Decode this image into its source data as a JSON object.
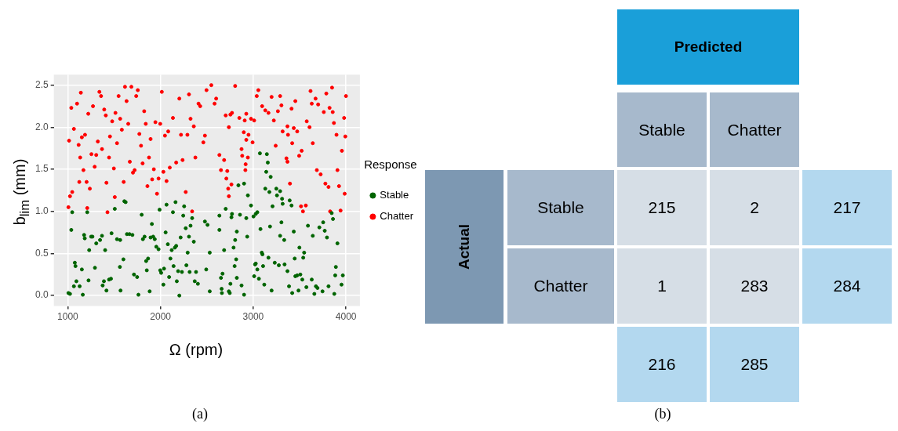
{
  "chart_data": [
    {
      "type": "scatter",
      "xlabel": "Ω (rpm)",
      "ylabel": "b$_{lim}$ (mm)",
      "legend_title": "Response",
      "legend": "right",
      "grid": true,
      "marker": "circle",
      "annotations": [
        "(a)"
      ],
      "xlim": [
        850,
        4150
      ],
      "ylim": [
        -0.125,
        2.625
      ],
      "xticks": [
        1000,
        2000,
        3000,
        4000
      ],
      "yticks": [
        {
          "value": 0,
          "label": "0.0"
        },
        {
          "value": 0.5,
          "label": "0.5"
        },
        {
          "value": 1,
          "label": "1.0"
        },
        {
          "value": 1.5,
          "label": "1.5"
        },
        {
          "value": 2,
          "label": "2.0"
        },
        {
          "value": 2.5,
          "label": "2.5"
        }
      ],
      "series": [
        {
          "name": "Stable",
          "color": "#006400",
          "x": [
            1007,
            1024,
            1038,
            1048,
            1066,
            1076,
            1083,
            1093,
            1128,
            1152,
            1162,
            1176,
            1183,
            1210,
            1224,
            1231,
            1252,
            1266,
            1293,
            1307,
            1348,
            1369,
            1403,
            1376,
            1390,
            1417,
            1445,
            1466,
            1472,
            1507,
            1531,
            1565,
            1562,
            1569,
            1600,
            1610,
            1624,
            1638,
            1665,
            1697,
            1714,
            1748,
            1762,
            1797,
            1810,
            1828,
            1845,
            1852,
            1866,
            1883,
            1893,
            1907,
            1921,
            1938,
            1955,
            1979,
            1990,
            1997,
            2007,
            2031,
            2038,
            2055,
            2065,
            2079,
            2093,
            2107,
            2121,
            2134,
            2141,
            2155,
            2169,
            2162,
            2176,
            2190,
            2203,
            2217,
            2231,
            2245,
            2255,
            2272,
            2279,
            2293,
            2307,
            2314,
            2324,
            2341,
            2359,
            2369,
            2383,
            2403,
            2479,
            2493,
            2507,
            2531,
            2531,
            2635,
            2635,
            2652,
            2659,
            2662,
            2669,
            2686,
            2703,
            2737,
            2747,
            2754,
            2765,
            2771,
            2788,
            2799,
            2805,
            2816,
            2823,
            2823,
            2840,
            2857,
            2874,
            2901,
            2901,
            2925,
            2935,
            2942,
            2976,
            3003,
            3010,
            3020,
            3027,
            3027,
            3044,
            3044,
            3061,
            3072,
            3078,
            3092,
            3099,
            3106,
            3119,
            3130,
            3140,
            3147,
            3157,
            3164,
            3174,
            3181,
            3188,
            3198,
            3208,
            3232,
            3249,
            3256,
            3276,
            3290,
            3290,
            3304,
            3311,
            3317,
            3334,
            3338,
            3369,
            3386,
            3393,
            3413,
            3420,
            3437,
            3447,
            3454,
            3474,
            3488,
            3498,
            3508,
            3529,
            3539,
            3549,
            3573,
            3590,
            3631,
            3642,
            3659,
            3676,
            3693,
            3713,
            3747,
            3754,
            3771,
            3795,
            3812,
            3846,
            3860,
            3874,
            3884,
            3891,
            3908,
            3952,
            3966
          ],
          "values": [
            0.03,
            0.02,
            0.78,
            0.99,
            0.11,
            0.39,
            0.35,
            0.17,
            0.11,
            0.31,
            0.01,
            0.72,
            0.68,
            0.99,
            0.18,
            0.54,
            0.7,
            0.7,
            0.33,
            0.62,
            0.66,
            0.71,
            0.54,
            0.12,
            0.17,
            0.06,
            0.19,
            0.2,
            0.74,
            1.03,
            0.67,
            0.66,
            0.34,
            0.06,
            0.43,
            1.12,
            1.11,
            0.73,
            0.73,
            0.72,
            0.25,
            0.22,
            0.01,
            0.96,
            0.67,
            0.7,
            0.41,
            0.3,
            0.44,
            0.05,
            0.69,
            0.85,
            0.7,
            0.67,
            0.58,
            0.55,
            1.02,
            0.3,
            0.27,
            0.13,
            0.32,
            0.75,
            1.08,
            0.61,
            0.22,
            0.44,
            0.54,
            0.99,
            0.35,
            0.57,
            0.59,
            1.11,
            0.17,
            0.29,
            0.0,
            0.69,
            0.28,
            0.95,
            1.06,
            0.8,
            0.36,
            0.51,
            0.7,
            0.28,
            0.83,
            0.92,
            0.64,
            0.17,
            0.28,
            0.14,
            0.88,
            0.31,
            0.84,
            0.51,
            0.05,
            0.95,
            0.78,
            0.21,
            0.08,
            0.03,
            0.26,
            0.54,
            1.03,
            0.05,
            0.03,
            0.14,
            0.93,
            0.97,
            0.57,
            0.35,
            0.66,
            0.43,
            0.76,
            0.21,
            1.31,
            0.96,
            0.12,
            1.33,
            0.01,
            0.92,
            0.7,
            1.19,
            1.07,
            0.94,
            0.23,
            0.37,
            0.97,
            0.38,
            0.99,
            0.31,
            0.2,
            1.69,
            0.79,
            0.51,
            0.49,
            0.35,
            0.13,
            1.27,
            1.47,
            1.68,
            1.58,
            0.45,
            1.23,
            0.82,
            1.41,
            0.06,
            1.06,
            0.39,
            1.27,
            1.19,
            0.36,
            1.24,
            0.71,
            0.87,
            1.15,
            1.09,
            0.66,
            0.37,
            0.29,
            0.11,
            1.13,
            1.07,
            0.03,
            0.76,
            0.44,
            0.23,
            0.24,
            0.06,
            0.57,
            0.25,
            0.19,
            0.45,
            0.51,
            0.1,
            0.83,
            0.19,
            0.71,
            0.02,
            0.11,
            0.09,
            0.81,
            0.05,
            0.87,
            0.77,
            0.69,
            0.11,
            0.98,
            0.91,
            0.02,
            0.24,
            0.34,
            0.62,
            0.13,
            0.24
          ]
        },
        {
          "name": "Chatter",
          "color": "#ff0000",
          "x": [
            1007,
            1014,
            1024,
            1048,
            1038,
            1066,
            1100,
            1117,
            1124,
            1141,
            1134,
            1152,
            1169,
            1186,
            1203,
            1210,
            1221,
            1238,
            1255,
            1272,
            1290,
            1307,
            1324,
            1341,
            1359,
            1369,
            1393,
            1410,
            1417,
            1428,
            1445,
            1455,
            1479,
            1497,
            1507,
            1514,
            1531,
            1548,
            1565,
            1583,
            1603,
            1617,
            1634,
            1652,
            1669,
            1686,
            1703,
            1721,
            1738,
            1755,
            1772,
            1790,
            1807,
            1824,
            1841,
            1859,
            1876,
            1893,
            1910,
            1928,
            1945,
            1962,
            1979,
            1997,
            2014,
            2031,
            2048,
            2065,
            2083,
            2100,
            2134,
            2169,
            2203,
            2221,
            2238,
            2272,
            2290,
            2307,
            2324,
            2341,
            2359,
            2376,
            2410,
            2428,
            2462,
            2479,
            2496,
            2548,
            2583,
            2600,
            2635,
            2652,
            2686,
            2703,
            2710,
            2720,
            2730,
            2737,
            2737,
            2754,
            2765,
            2771,
            2805,
            2850,
            2874,
            2881,
            2898,
            2908,
            2915,
            2918,
            2925,
            2925,
            2942,
            2949,
            2976,
            2993,
            3010,
            3038,
            3055,
            3096,
            3130,
            3164,
            3198,
            3222,
            3242,
            3266,
            3290,
            3304,
            3317,
            3358,
            3369,
            3375,
            3369,
            3396,
            3413,
            3420,
            3437,
            3454,
            3474,
            3495,
            3522,
            3515,
            3536,
            3567,
            3577,
            3607,
            3618,
            3631,
            3642,
            3672,
            3686,
            3700,
            3727,
            3761,
            3778,
            3788,
            3812,
            3823,
            3829,
            3850,
            3857,
            3870,
            3898,
            3908,
            3925,
            3942,
            3956,
            3980,
            3986,
            3993,
            4000
          ],
          "values": [
            1.05,
            1.84,
            1.18,
            1.23,
            2.23,
            1.98,
            2.28,
            1.79,
            1.35,
            2.41,
            1.64,
            1.88,
            1.49,
            1.91,
            1.35,
            1.04,
            2.16,
            1.27,
            1.68,
            2.25,
            1.53,
            1.67,
            1.83,
            2.42,
            2.37,
            1.74,
            2.21,
            2.14,
            1.34,
            0.99,
            1.64,
            1.89,
            2.07,
            1.51,
            1.17,
            2.17,
            1.81,
            2.37,
            2.1,
            1.97,
            1.35,
            2.48,
            2.31,
            2.04,
            1.59,
            2.48,
            1.46,
            1.49,
            2.37,
            2.44,
            1.92,
            1.78,
            1.57,
            2.19,
            2.04,
            1.3,
            1.64,
            1.86,
            1.38,
            1.5,
            2.06,
            1.21,
            1.39,
            2.04,
            2.42,
            1.47,
            1.9,
            1.36,
            1.95,
            1.52,
            2.11,
            1.58,
            2.34,
            1.91,
            1.61,
            1.23,
            1.91,
            2.39,
            2.1,
            1.0,
            2.01,
            1.64,
            2.28,
            2.25,
            1.82,
            1.9,
            2.44,
            2.5,
            2.28,
            2.34,
            1.67,
            1.49,
            1.61,
            2.14,
            1.39,
            1.48,
            1.27,
            2.0,
            1.18,
            2.15,
            1.32,
            2.17,
            2.49,
            2.11,
            1.74,
            1.66,
            1.94,
            2.08,
            1.49,
            1.56,
            2.16,
            1.85,
            1.64,
            1.91,
            2.1,
            1.82,
            2.08,
            2.37,
            2.44,
            2.25,
            2.2,
            2.17,
            2.36,
            2.08,
            1.78,
            2.19,
            2.37,
            2.26,
            1.95,
            1.63,
            2.01,
            1.91,
            1.59,
            1.33,
            2.22,
            1.81,
            1.99,
            2.31,
            1.95,
            1.66,
            1.72,
            1.06,
            1.0,
            1.07,
            2.07,
            2.0,
            2.43,
            2.28,
            1.81,
            2.34,
            1.49,
            2.27,
            1.44,
            2.18,
            1.33,
            2.4,
            1.29,
            2.23,
            1.0,
            2.47,
            2.18,
            2.05,
            1.91,
            1.49,
            1.3,
            1.01,
            1.72,
            2.11,
            1.21,
            1.89,
            2.37
          ]
        }
      ]
    },
    {
      "type": "heatmap",
      "xlabel": "Predicted",
      "ylabel": "Actual",
      "data_labels": true,
      "annotations": [
        "(b)"
      ],
      "categories": [
        "Stable",
        "Chatter",
        null
      ],
      "y_categories": [
        "Stable",
        "Chatter",
        null
      ],
      "cells": [
        [
          215,
          2,
          217
        ],
        [
          1,
          283,
          284
        ],
        [
          216,
          285,
          null
        ]
      ]
    }
  ]
}
